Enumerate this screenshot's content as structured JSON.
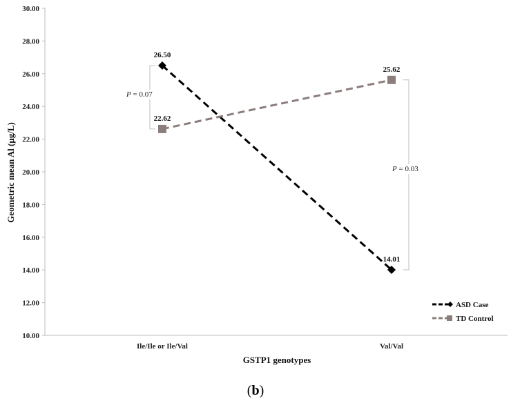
{
  "chart_data": {
    "type": "line",
    "categories": [
      "Ile/Ile or Ile/Val",
      "Val/Val"
    ],
    "series": [
      {
        "name": "ASD Case",
        "values": [
          26.5,
          14.01
        ],
        "value_labels": [
          "26.50",
          "14.01"
        ],
        "color": "#000000",
        "marker": "diamond"
      },
      {
        "name": "TD Control",
        "values": [
          22.62,
          25.62
        ],
        "value_labels": [
          "22.62",
          "25.62"
        ],
        "color": "#8c7d7d",
        "marker": "square"
      }
    ],
    "title": "",
    "xlabel": "GSTP1 genotypes",
    "ylabel": "Geometric mean Al (μg/L)",
    "ylim": [
      10,
      30
    ],
    "yticks": [
      "10.00",
      "12.00",
      "14.00",
      "16.00",
      "18.00",
      "20.00",
      "22.00",
      "24.00",
      "26.00",
      "28.00",
      "30.00"
    ],
    "grid": false,
    "legend_position": "bottom-right",
    "annotations": [
      {
        "text_italic": "P",
        "text_rest": " = 0.07",
        "category_index": 0
      },
      {
        "text_italic": "P",
        "text_rest": " = 0.03",
        "category_index": 1
      }
    ]
  },
  "panel_label": {
    "open": "(",
    "letter": "b",
    "close": ")"
  }
}
